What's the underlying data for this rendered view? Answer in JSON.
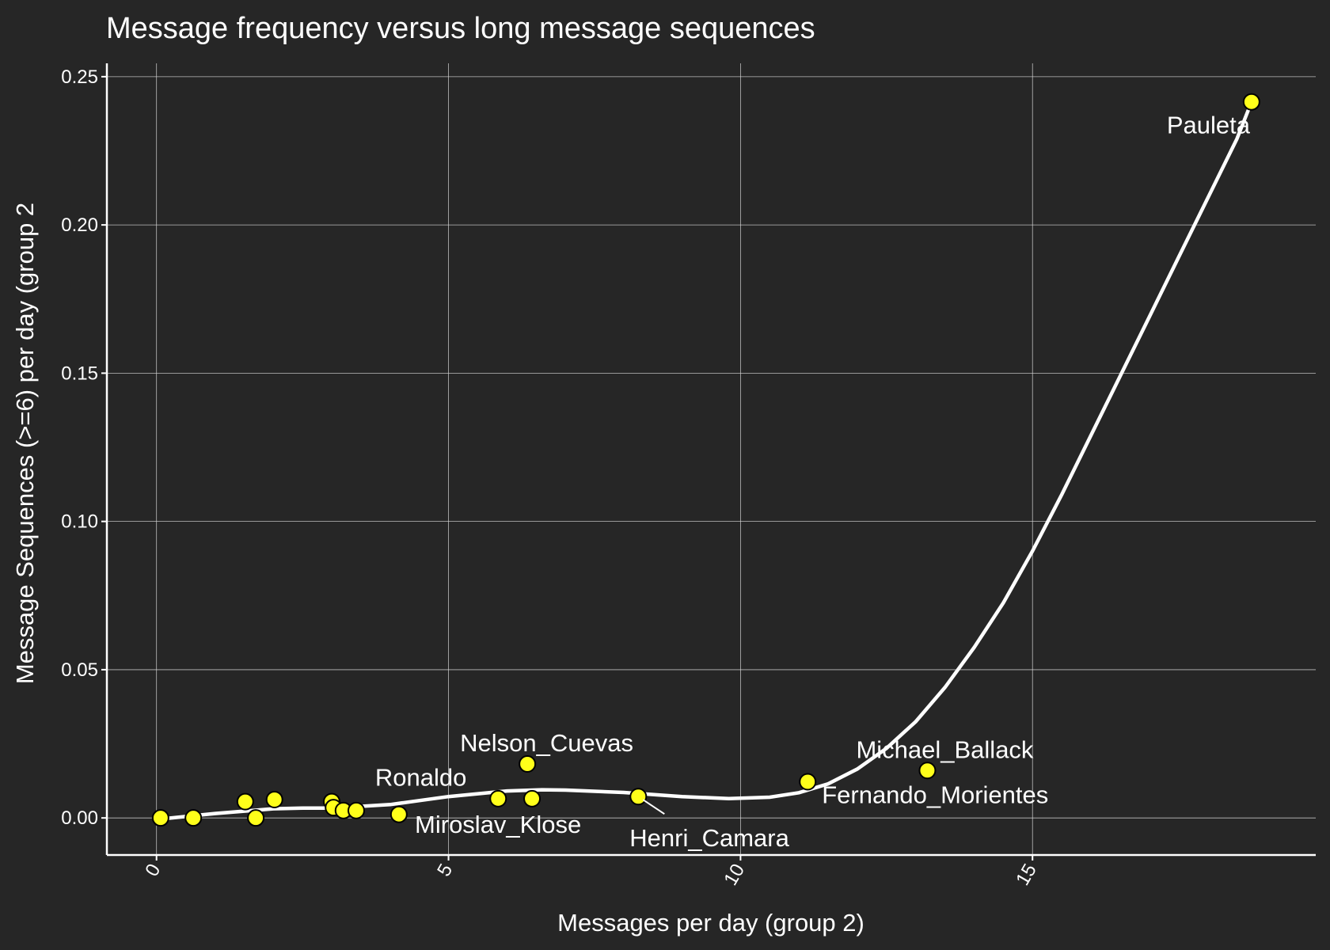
{
  "chart_data": {
    "type": "scatter",
    "title": "Message frequency versus long message sequences",
    "xlabel": "Messages per day (group 2)",
    "ylabel": "Message Sequences (>=6) per day (group 2",
    "xlim": [
      -0.85,
      19.85
    ],
    "ylim": [
      -0.0125,
      0.2545
    ],
    "x_ticks": [
      0,
      5,
      10,
      15
    ],
    "x_tick_labels": [
      "0",
      "5",
      "10",
      "15"
    ],
    "y_ticks": [
      0.0,
      0.05,
      0.1,
      0.15,
      0.2,
      0.25
    ],
    "y_tick_labels": [
      "0.00",
      "0.05",
      "0.10",
      "0.15",
      "0.20",
      "0.25"
    ],
    "grid": true,
    "points": [
      {
        "x": 0.07,
        "y": 0.0
      },
      {
        "x": 0.63,
        "y": 0.0
      },
      {
        "x": 1.52,
        "y": 0.0055
      },
      {
        "x": 1.7,
        "y": 0.0
      },
      {
        "x": 2.02,
        "y": 0.0062
      },
      {
        "x": 3.0,
        "y": 0.0055
      },
      {
        "x": 3.03,
        "y": 0.0035
      },
      {
        "x": 3.2,
        "y": 0.0025
      },
      {
        "x": 3.42,
        "y": 0.0025
      },
      {
        "x": 4.15,
        "y": 0.0012
      },
      {
        "x": 5.85,
        "y": 0.0065
      },
      {
        "x": 6.35,
        "y": 0.0182
      },
      {
        "x": 6.43,
        "y": 0.0065
      },
      {
        "x": 8.25,
        "y": 0.0072
      },
      {
        "x": 11.15,
        "y": 0.0122
      },
      {
        "x": 13.2,
        "y": 0.016
      },
      {
        "x": 18.75,
        "y": 0.2415
      }
    ],
    "labels": [
      {
        "text": "Pauleta",
        "x": 18.75,
        "y": 0.2415
      },
      {
        "text": "Michael_Ballack",
        "x": 13.2,
        "y": 0.016
      },
      {
        "text": "Fernando_Morientes",
        "x": 11.15,
        "y": 0.0122
      },
      {
        "text": "Nelson_Cuevas",
        "x": 6.35,
        "y": 0.0182
      },
      {
        "text": "Ronaldo",
        "x": 4.15,
        "y": 0.0012
      },
      {
        "text": "Miroslav_Klose",
        "x": 6.43,
        "y": 0.0065
      },
      {
        "text": "Henri_Camara",
        "x": 8.25,
        "y": 0.0072
      }
    ],
    "smooth_line": {
      "x": [
        0.0,
        1.0,
        2.0,
        2.5,
        3.0,
        4.0,
        5.0,
        6.0,
        6.6,
        7.0,
        8.0,
        9.0,
        9.8,
        10.5,
        11.0,
        11.5,
        12.0,
        12.5,
        13.0,
        13.5,
        14.0,
        14.5,
        15.0,
        15.5,
        16.0,
        16.5,
        17.0,
        17.5,
        18.0,
        18.5,
        18.75
      ],
      "y": [
        -0.0005,
        0.0015,
        0.0031,
        0.0033,
        0.0033,
        0.0045,
        0.0072,
        0.0091,
        0.0095,
        0.0094,
        0.0086,
        0.0072,
        0.0065,
        0.007,
        0.0085,
        0.0115,
        0.0165,
        0.0235,
        0.0325,
        0.044,
        0.0575,
        0.0725,
        0.09,
        0.109,
        0.129,
        0.149,
        0.169,
        0.189,
        0.209,
        0.229,
        0.2415
      ]
    }
  }
}
